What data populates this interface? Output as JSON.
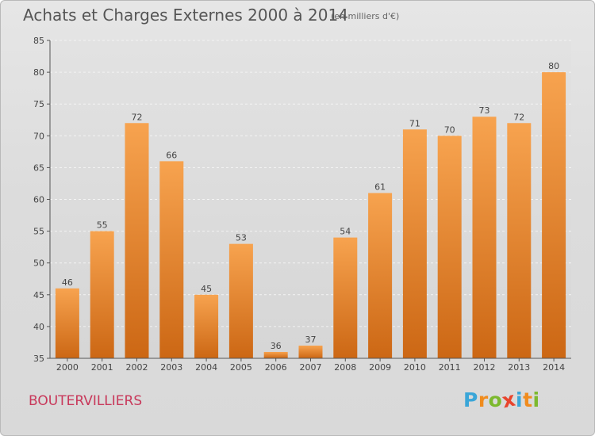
{
  "chart_data": {
    "type": "bar",
    "title": "Achats et Charges Externes 2000 à 2014",
    "subtitle": "(en milliers d'€)",
    "categories": [
      "2000",
      "2001",
      "2002",
      "2003",
      "2004",
      "2005",
      "2006",
      "2007",
      "2008",
      "2009",
      "2010",
      "2011",
      "2012",
      "2013",
      "2014"
    ],
    "values": [
      46,
      55,
      72,
      66,
      45,
      53,
      36,
      37,
      54,
      61,
      71,
      70,
      73,
      72,
      80
    ],
    "xlabel": "",
    "ylabel": "",
    "ylim": [
      35,
      85
    ],
    "yticks": [
      35,
      40,
      45,
      50,
      55,
      60,
      65,
      70,
      75,
      80,
      85
    ],
    "grid": "horizontal",
    "colors": {
      "bar_top": "#f7a34f",
      "bar_bottom": "#cc6714"
    }
  },
  "commune": "BOUTERVILLIERS",
  "logo": {
    "letters": [
      "P",
      "r",
      "o",
      "x",
      "i",
      "t",
      "i"
    ],
    "colors": [
      "#3aa6d8",
      "#f08c1e",
      "#7cb92e",
      "#e8442c",
      "#3aa6d8",
      "#f08c1e",
      "#7cb92e"
    ]
  }
}
